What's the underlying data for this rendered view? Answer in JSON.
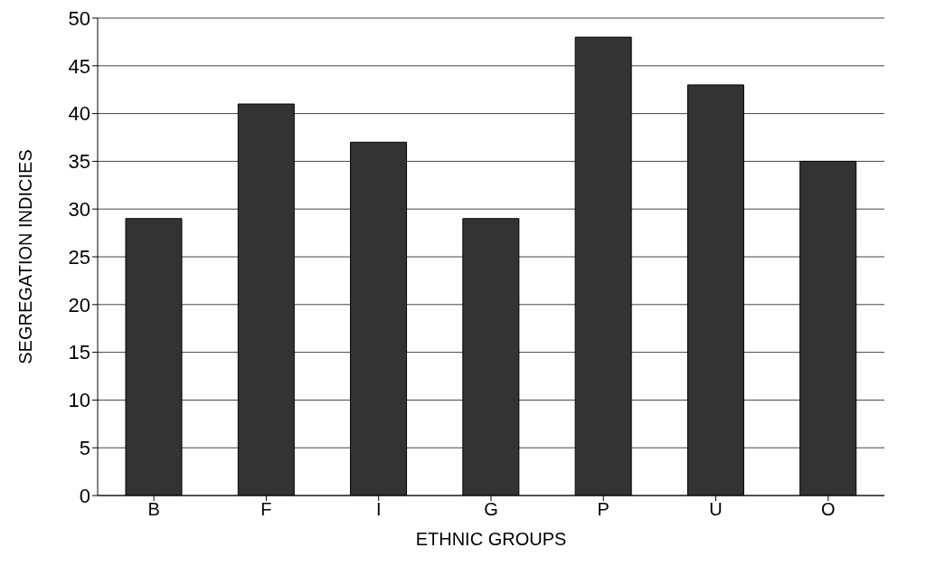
{
  "chart_data": {
    "type": "bar",
    "xlabel": "ETHNIC GROUPS",
    "ylabel": "SEGREGATION INDICIES",
    "categories": [
      "B",
      "F",
      "I",
      "G",
      "P",
      "U",
      "O"
    ],
    "values": [
      29,
      41,
      37,
      29,
      48,
      43,
      35
    ],
    "color": "#333333",
    "ylim": [
      0,
      50
    ],
    "yticks": [
      0,
      5,
      10,
      15,
      20,
      25,
      30,
      35,
      40,
      45,
      50
    ],
    "grid": "y"
  }
}
